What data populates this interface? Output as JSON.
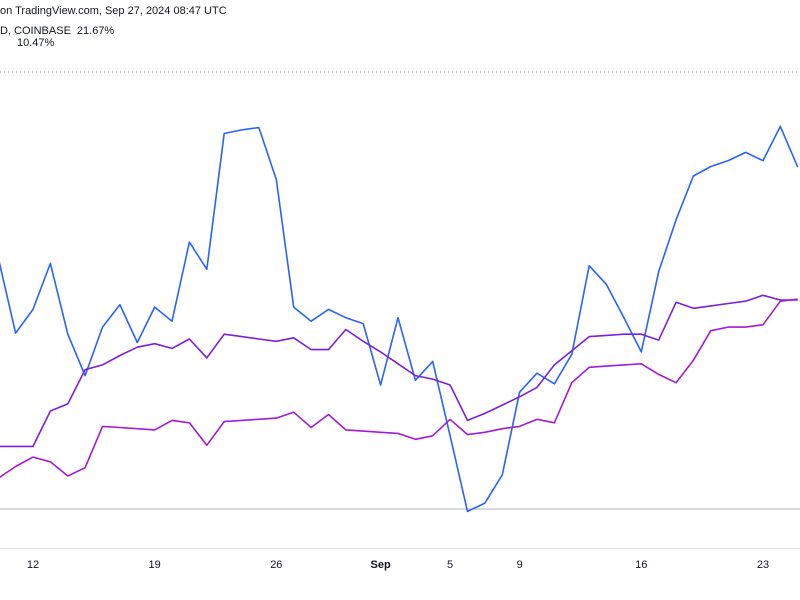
{
  "chart_data": {
    "type": "line",
    "header": "on TradingView.com, Sep 27, 2024 08:47 UTC",
    "categories": [
      null,
      null,
      "12",
      null,
      null,
      null,
      null,
      null,
      null,
      "19",
      null,
      null,
      null,
      null,
      null,
      null,
      "26",
      null,
      null,
      null,
      null,
      null,
      "Sep",
      null,
      null,
      null,
      "5",
      null,
      null,
      null,
      "9",
      null,
      null,
      null,
      null,
      null,
      null,
      "16",
      null,
      null,
      null,
      null,
      null,
      null,
      "23",
      null,
      null
    ],
    "bold_categories": [
      "Sep"
    ],
    "ylim": [
      -10.6,
      35.8
    ],
    "reference_lines": [
      {
        "value": -7.3,
        "color": "#b2b5be",
        "style": "solid"
      },
      {
        "value": 29.7,
        "color": "#9598a1",
        "style": "dotted"
      }
    ],
    "series": [
      {
        "name": "D, COINBASE",
        "legend_label": "21.67%",
        "color": "#2962ff",
        "values": [
          14.0,
          7.6,
          9.6,
          13.5,
          7.5,
          4.0,
          8.1,
          10.0,
          6.8,
          9.8,
          8.6,
          15.3,
          13.0,
          24.5,
          24.8,
          25.0,
          20.6,
          9.8,
          8.6,
          9.6,
          8.9,
          8.4,
          3.2,
          8.9,
          3.6,
          5.2,
          -1.1,
          -7.5,
          -6.8,
          -4.4,
          2.6,
          4.2,
          3.3,
          5.8,
          13.3,
          11.7,
          8.9,
          6.0,
          12.8,
          17.2,
          20.9,
          21.7,
          22.2,
          22.9,
          22.2,
          25.1,
          21.67
        ]
      },
      {
        "color": "#7b1fe0",
        "values": [
          -2.0,
          -2.0,
          -2.0,
          1.0,
          1.6,
          4.5,
          4.9,
          5.7,
          6.4,
          6.7,
          6.3,
          7.1,
          5.5,
          7.5,
          7.3,
          7.1,
          6.9,
          7.2,
          6.2,
          6.2,
          7.9,
          6.9,
          6.0,
          5.0,
          4.0,
          3.7,
          3.2,
          0.2,
          0.8,
          1.5,
          2.2,
          3.0,
          4.9,
          6.1,
          7.3,
          7.4,
          7.5,
          7.5,
          7.0,
          10.2,
          9.7,
          9.9,
          10.1,
          10.3,
          10.8,
          10.4,
          10.4
        ]
      },
      {
        "legend_label": "10.47%",
        "color": "#a21bd6",
        "values": [
          -4.7,
          -3.7,
          -2.9,
          -3.3,
          -4.5,
          -3.8,
          -0.3,
          -0.4,
          -0.5,
          -0.6,
          0.2,
          0.0,
          -1.9,
          0.1,
          0.2,
          0.3,
          0.4,
          0.9,
          -0.4,
          0.7,
          -0.6,
          -0.7,
          -0.8,
          -0.9,
          -1.4,
          -1.1,
          0.3,
          -1.0,
          -0.8,
          -0.5,
          -0.3,
          0.3,
          0.0,
          3.4,
          4.7,
          4.8,
          4.9,
          5.0,
          4.1,
          3.4,
          5.3,
          7.8,
          8.1,
          8.1,
          8.3,
          10.3,
          10.47
        ]
      }
    ]
  }
}
